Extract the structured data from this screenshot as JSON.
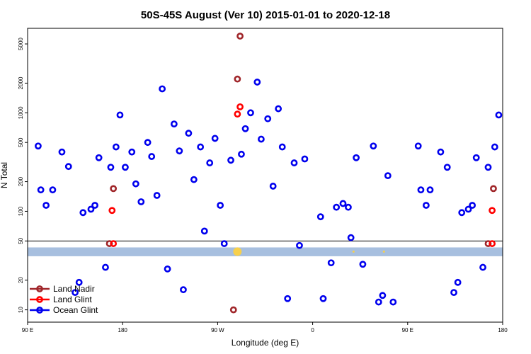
{
  "chart_data": {
    "type": "scatter",
    "title": "50S-45S August (Ver 10)   2015-01-01 to 2020-12-18",
    "xlabel": "Longitude (deg E)",
    "ylabel": "N Total",
    "y_scale": "log",
    "ylim": [
      7.5,
      7200
    ],
    "xlim": [
      0,
      360
    ],
    "x_ticks": [
      {
        "value": 0,
        "label": "90 E"
      },
      {
        "value": 72,
        "label": "180"
      },
      {
        "value": 144,
        "label": "90 W"
      },
      {
        "value": 216,
        "label": "0"
      },
      {
        "value": 288,
        "label": "90 E"
      },
      {
        "value": 360,
        "label": "180"
      }
    ],
    "y_ticks": [
      10,
      20,
      50,
      100,
      200,
      500,
      1000,
      2000,
      5000
    ],
    "reference_line": 50,
    "band": [
      35,
      43
    ],
    "band_color": "#a7bfdf",
    "band_markers": [
      {
        "x": 159,
        "y": 39,
        "color": "#f7d04c",
        "size": 6
      },
      {
        "x": 247,
        "y": 39,
        "color": "#f7d04c",
        "size": 1.5
      },
      {
        "x": 270,
        "y": 39,
        "color": "#f7d04c",
        "size": 1.5
      }
    ],
    "legend_position": "bottom-left",
    "series": [
      {
        "name": "Land Nadir",
        "color": "#a0262a",
        "points": [
          [
            161,
            6000
          ],
          [
            159,
            2200
          ],
          [
            65,
            170
          ],
          [
            353,
            170
          ],
          [
            62,
            47
          ],
          [
            349,
            47
          ],
          [
            156,
            10
          ]
        ]
      },
      {
        "name": "Land Glint",
        "color": "#ff0000",
        "points": [
          [
            161,
            1150
          ],
          [
            159,
            970
          ],
          [
            64,
            102
          ],
          [
            352,
            102
          ],
          [
            65,
            47
          ],
          [
            352,
            47
          ]
        ]
      },
      {
        "name": "Ocean Glint",
        "color": "#0000ee",
        "points": [
          [
            8,
            460
          ],
          [
            10,
            165
          ],
          [
            14,
            115
          ],
          [
            19,
            165
          ],
          [
            26,
            400
          ],
          [
            31,
            285
          ],
          [
            36,
            15
          ],
          [
            39,
            19
          ],
          [
            42,
            97
          ],
          [
            48,
            105
          ],
          [
            51,
            115
          ],
          [
            54,
            350
          ],
          [
            59,
            27
          ],
          [
            63,
            280
          ],
          [
            67,
            450
          ],
          [
            70,
            950
          ],
          [
            74,
            280
          ],
          [
            79,
            400
          ],
          [
            82,
            190
          ],
          [
            86,
            125
          ],
          [
            91,
            500
          ],
          [
            94,
            360
          ],
          [
            98,
            145
          ],
          [
            102,
            1750
          ],
          [
            106,
            26
          ],
          [
            111,
            770
          ],
          [
            115,
            410
          ],
          [
            118,
            16
          ],
          [
            122,
            620
          ],
          [
            126,
            210
          ],
          [
            131,
            450
          ],
          [
            134,
            63
          ],
          [
            138,
            310
          ],
          [
            142,
            550
          ],
          [
            146,
            115
          ],
          [
            149,
            47
          ],
          [
            154,
            330
          ],
          [
            162,
            380
          ],
          [
            165,
            690
          ],
          [
            169,
            1000
          ],
          [
            174,
            2050
          ],
          [
            177,
            540
          ],
          [
            182,
            870
          ],
          [
            186,
            180
          ],
          [
            190,
            1100
          ],
          [
            193,
            450
          ],
          [
            197,
            13
          ],
          [
            202,
            310
          ],
          [
            206,
            45
          ],
          [
            210,
            340
          ],
          [
            222,
            88
          ],
          [
            224,
            13
          ],
          [
            230,
            30
          ],
          [
            234,
            110
          ],
          [
            239,
            120
          ],
          [
            243,
            110
          ],
          [
            245,
            54
          ],
          [
            249,
            350
          ],
          [
            254,
            29
          ],
          [
            262,
            460
          ],
          [
            266,
            12
          ],
          [
            269,
            14
          ],
          [
            273,
            230
          ],
          [
            277,
            12
          ],
          [
            296,
            460
          ],
          [
            298,
            165
          ],
          [
            302,
            115
          ],
          [
            305,
            165
          ],
          [
            313,
            400
          ],
          [
            318,
            280
          ],
          [
            323,
            15
          ],
          [
            326,
            19
          ],
          [
            329,
            97
          ],
          [
            334,
            105
          ],
          [
            337,
            115
          ],
          [
            340,
            350
          ],
          [
            345,
            27
          ],
          [
            349,
            280
          ],
          [
            354,
            450
          ],
          [
            357,
            950
          ]
        ]
      }
    ]
  }
}
